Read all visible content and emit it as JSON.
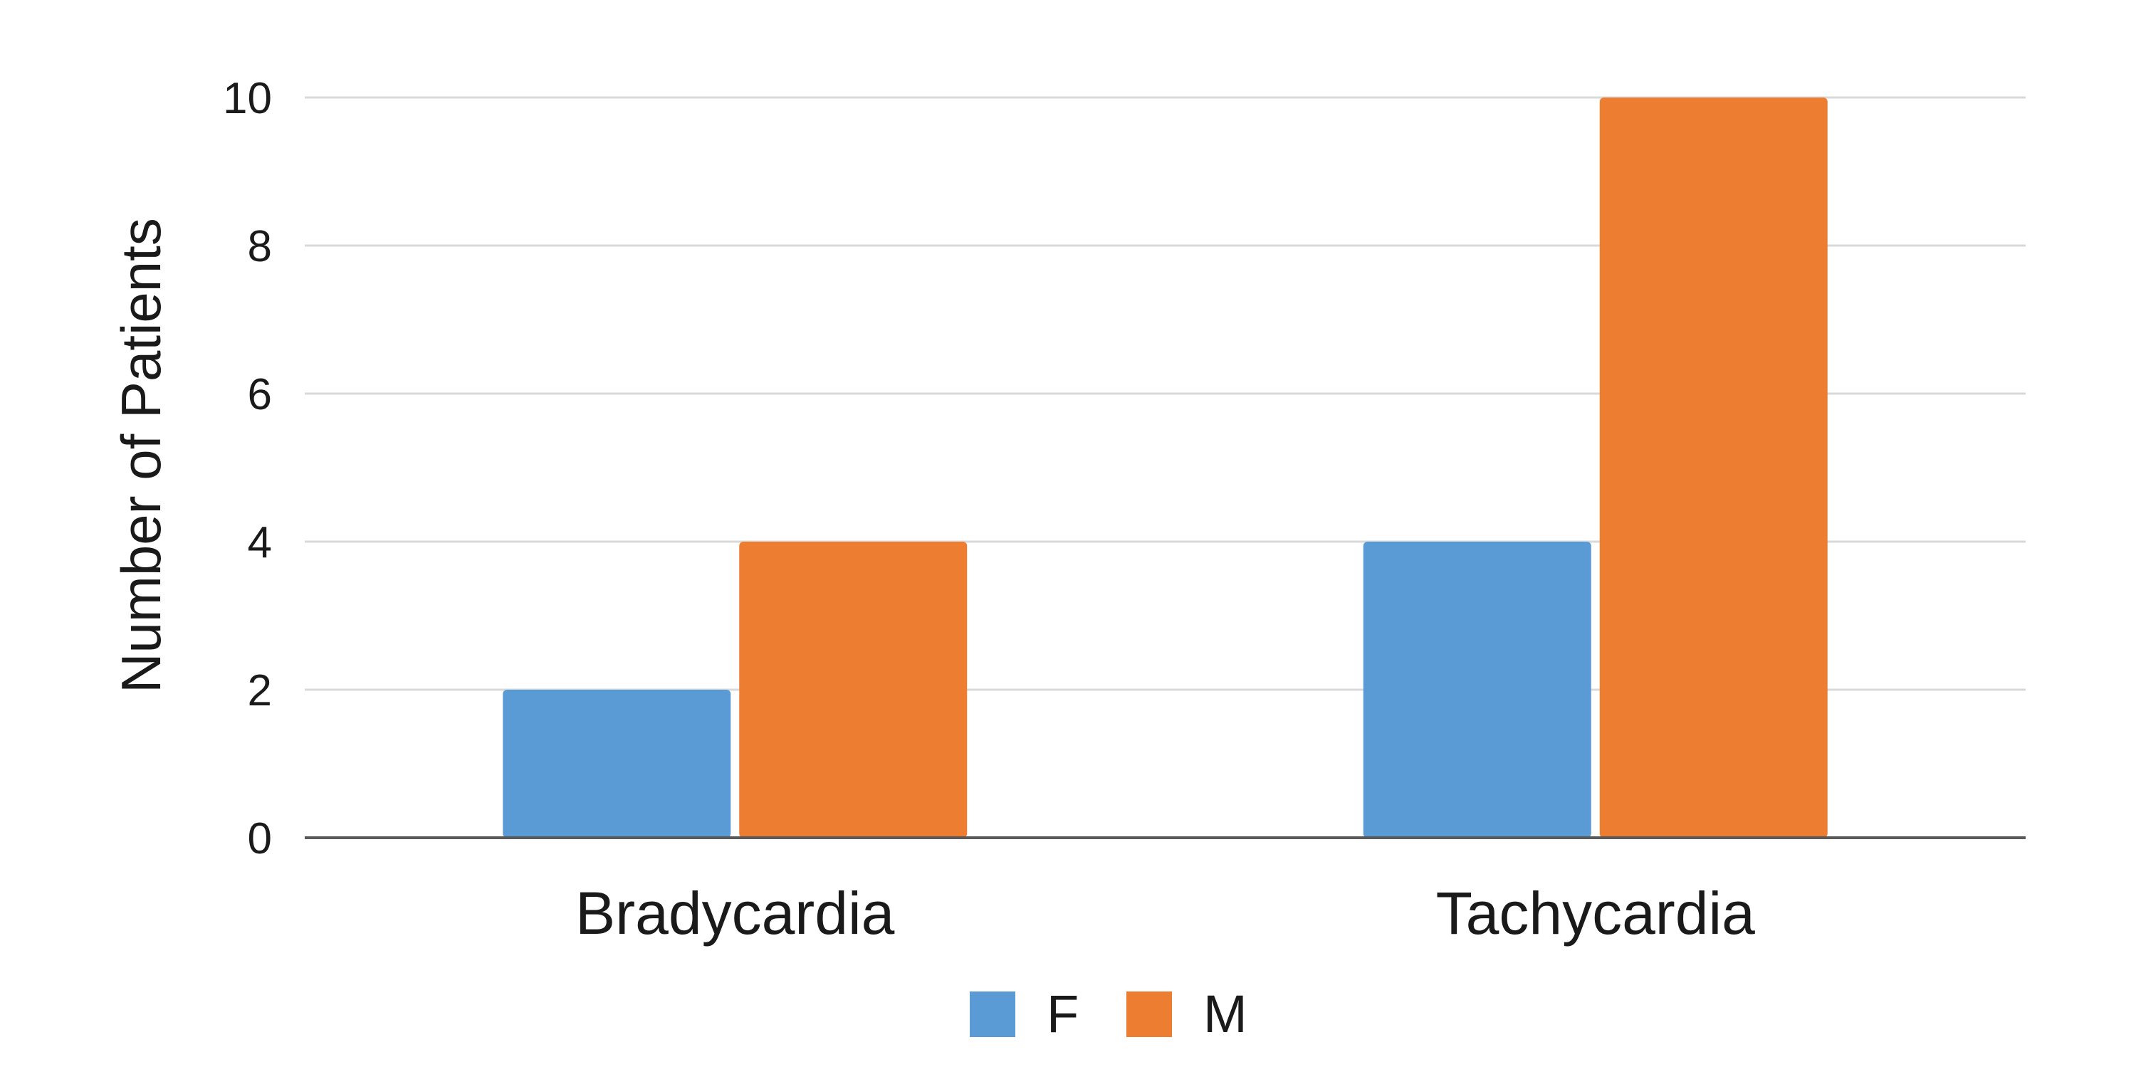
{
  "chart_data": {
    "type": "bar",
    "ylabel": "Number of Patients",
    "xlabel": "",
    "categories": [
      "Bradycardia",
      "Tachycardia"
    ],
    "series": [
      {
        "name": "F",
        "values": [
          2,
          4
        ],
        "color": "#5b9bd5"
      },
      {
        "name": "M",
        "values": [
          4,
          10
        ],
        "color": "#ed7d31"
      }
    ],
    "ylim": [
      0,
      10
    ],
    "yticks": [
      0,
      2,
      4,
      6,
      8,
      10
    ],
    "grid": true,
    "legend_position": "bottom"
  }
}
